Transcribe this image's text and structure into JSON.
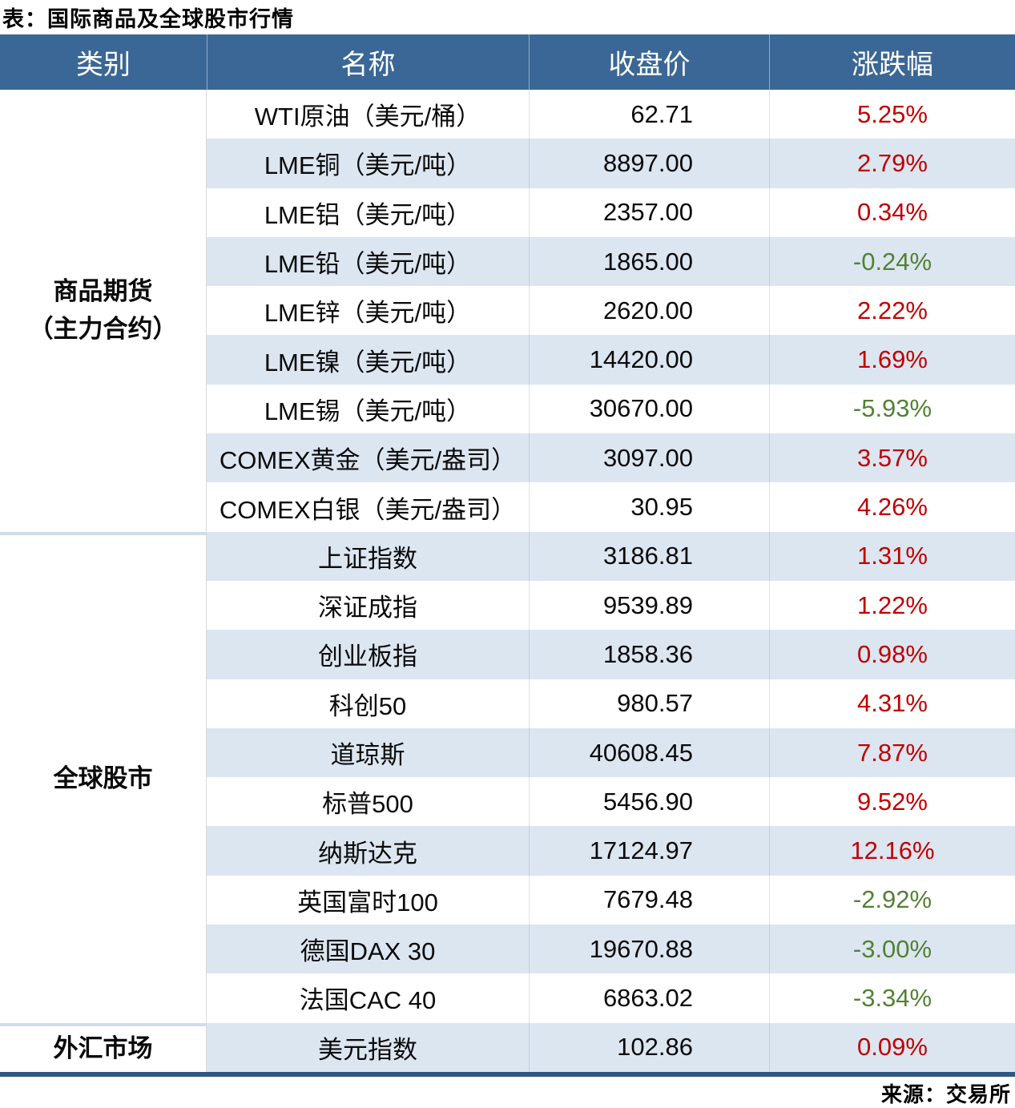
{
  "chart_data": {
    "type": "table",
    "title": "表：国际商品及全球股市行情",
    "source": "来源：交易所",
    "columns": [
      "类别",
      "名称",
      "收盘价",
      "涨跌幅"
    ],
    "colors": {
      "header_bg": "#3A6795",
      "stripe": "#DCE6F1",
      "up": "#C00000",
      "down": "#538135",
      "bottom_line": "#2F5782",
      "divider": "#CFDCEA"
    },
    "groups": [
      {
        "category_lines": [
          "商品期货",
          "（主力合约）"
        ],
        "rows": [
          {
            "name": "WTI原油（美元/桶）",
            "close": "62.71",
            "change": "5.25%",
            "direction": "up"
          },
          {
            "name": "LME铜（美元/吨）",
            "close": "8897.00",
            "change": "2.79%",
            "direction": "up"
          },
          {
            "name": "LME铝（美元/吨）",
            "close": "2357.00",
            "change": "0.34%",
            "direction": "up"
          },
          {
            "name": "LME铅（美元/吨）",
            "close": "1865.00",
            "change": "-0.24%",
            "direction": "down"
          },
          {
            "name": "LME锌（美元/吨）",
            "close": "2620.00",
            "change": "2.22%",
            "direction": "up"
          },
          {
            "name": "LME镍（美元/吨）",
            "close": "14420.00",
            "change": "1.69%",
            "direction": "up"
          },
          {
            "name": "LME锡（美元/吨）",
            "close": "30670.00",
            "change": "-5.93%",
            "direction": "down"
          },
          {
            "name": "COMEX黄金（美元/盎司）",
            "close": "3097.00",
            "change": "3.57%",
            "direction": "up"
          },
          {
            "name": "COMEX白银（美元/盎司）",
            "close": "30.95",
            "change": "4.26%",
            "direction": "up"
          }
        ]
      },
      {
        "category_lines": [
          "全球股市"
        ],
        "rows": [
          {
            "name": "上证指数",
            "close": "3186.81",
            "change": "1.31%",
            "direction": "up"
          },
          {
            "name": "深证成指",
            "close": "9539.89",
            "change": "1.22%",
            "direction": "up"
          },
          {
            "name": "创业板指",
            "close": "1858.36",
            "change": "0.98%",
            "direction": "up"
          },
          {
            "name": "科创50",
            "close": "980.57",
            "change": "4.31%",
            "direction": "up"
          },
          {
            "name": "道琼斯",
            "close": "40608.45",
            "change": "7.87%",
            "direction": "up"
          },
          {
            "name": "标普500",
            "close": "5456.90",
            "change": "9.52%",
            "direction": "up"
          },
          {
            "name": "纳斯达克",
            "close": "17124.97",
            "change": "12.16%",
            "direction": "up"
          },
          {
            "name": "英国富时100",
            "close": "7679.48",
            "change": "-2.92%",
            "direction": "down"
          },
          {
            "name": "德国DAX 30",
            "close": "19670.88",
            "change": "-3.00%",
            "direction": "down"
          },
          {
            "name": "法国CAC 40",
            "close": "6863.02",
            "change": "-3.34%",
            "direction": "down"
          }
        ]
      },
      {
        "category_lines": [
          "外汇市场"
        ],
        "rows": [
          {
            "name": "美元指数",
            "close": "102.86",
            "change": "0.09%",
            "direction": "up"
          }
        ]
      }
    ]
  }
}
